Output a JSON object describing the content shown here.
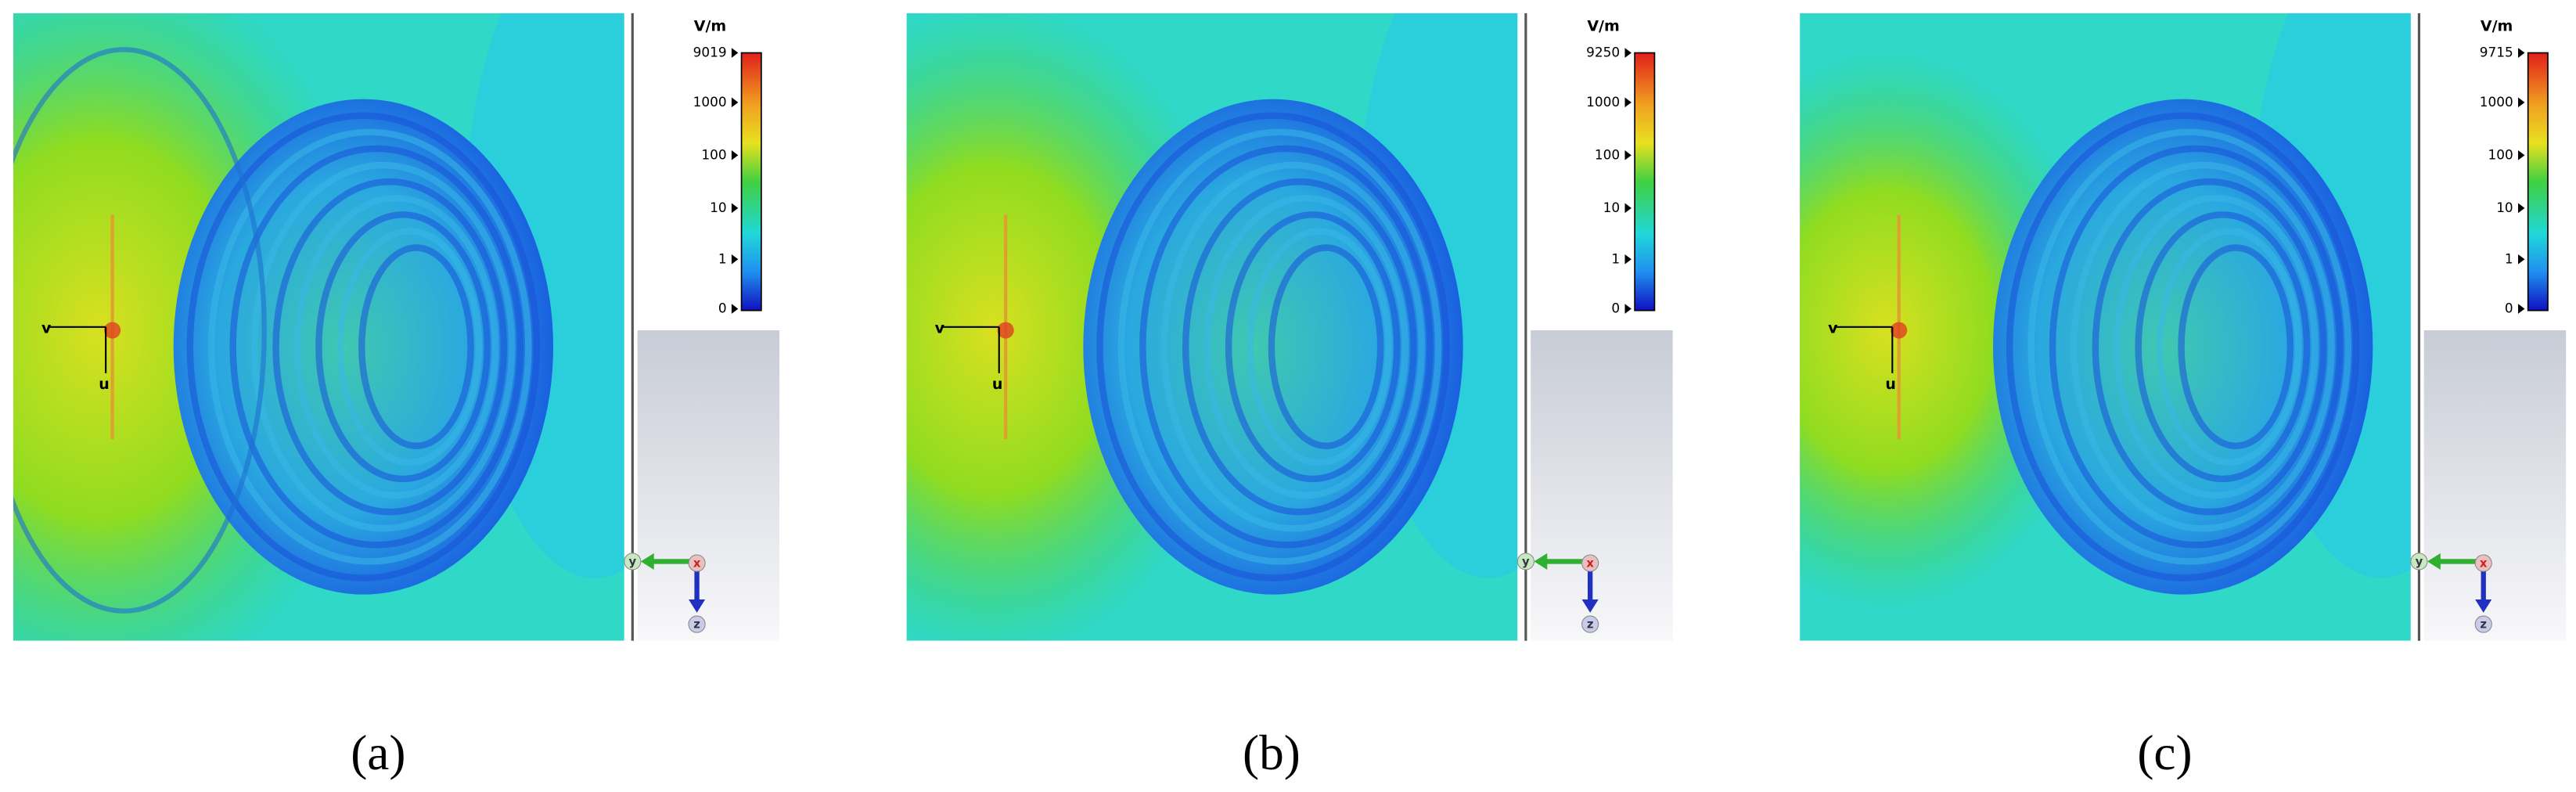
{
  "panels": [
    {
      "caption": "(a)",
      "unit": "V/m",
      "scale": [
        "9019",
        "1000",
        "100",
        "10",
        "1",
        "0"
      ],
      "local_axes": [
        "v",
        "u"
      ],
      "triad": [
        "y",
        "x",
        "z"
      ]
    },
    {
      "caption": "(b)",
      "unit": "V/m",
      "scale": [
        "9250",
        "1000",
        "100",
        "10",
        "1",
        "0"
      ],
      "local_axes": [
        "v",
        "u"
      ],
      "triad": [
        "y",
        "x",
        "z"
      ]
    },
    {
      "caption": "(c)",
      "unit": "V/m",
      "scale": [
        "9715",
        "1000",
        "100",
        "10",
        "1",
        "0"
      ],
      "local_axes": [
        "v",
        "u"
      ],
      "triad": [
        "y",
        "x",
        "z"
      ]
    }
  ]
}
